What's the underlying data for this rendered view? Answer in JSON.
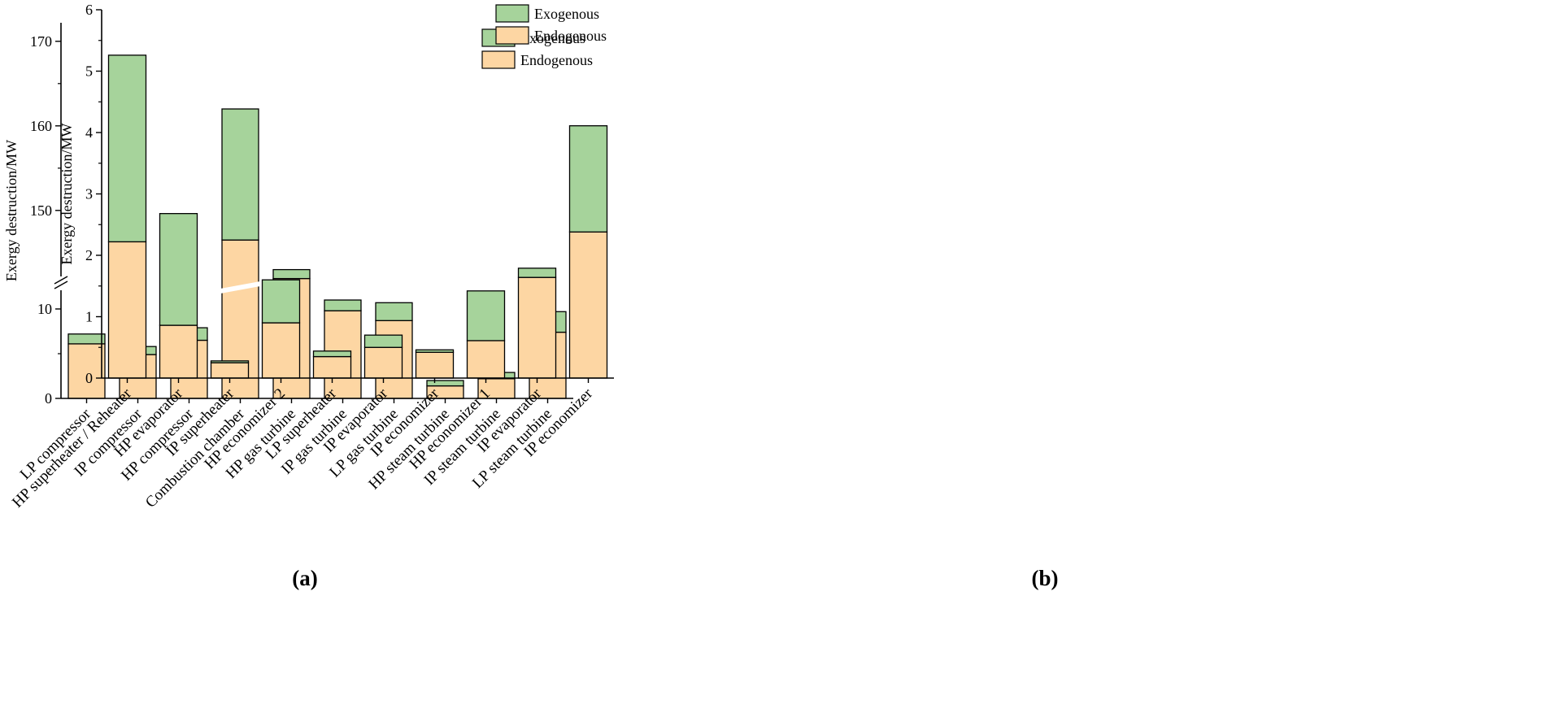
{
  "figure": {
    "sublabels": {
      "a": "(a)",
      "b": "(b)"
    }
  },
  "colors": {
    "exogenous": "#a6d39b",
    "endogenous": "#fdd6a3",
    "axis": "#000000",
    "background": "#ffffff"
  },
  "legend": {
    "items": [
      {
        "label": "Exogenous",
        "key": "exogenous"
      },
      {
        "label": "Endogenous",
        "key": "endogenous"
      }
    ]
  },
  "chart_data": [
    {
      "id": "a",
      "type": "bar",
      "stacked": true,
      "title": "",
      "xlabel": "",
      "ylabel": "Exergy destruction/MW",
      "legend_position": "top-right",
      "axis_break": {
        "lower_max": 14.5,
        "upper_min": 144,
        "upper_max": 172,
        "lower_ticks": [
          0,
          10
        ],
        "upper_ticks": [
          150,
          160,
          170
        ],
        "minor_ticks": [
          5,
          155,
          165
        ]
      },
      "categories": [
        "LP compressor",
        "IP compressor",
        "HP compressor",
        "Combustion chamber",
        "HP gas turbine",
        "IP gas turbine",
        "LP gas turbine",
        "HP steam turbine",
        "IP steam turbine",
        "LP steam turbine"
      ],
      "series": [
        {
          "name": "Endogenous",
          "key": "endogenous",
          "values": [
            6.1,
            4.9,
            6.5,
            146.5,
            13.4,
            9.8,
            8.7,
            1.4,
            2.2,
            7.4
          ]
        },
        {
          "name": "Exogenous",
          "key": "exogenous",
          "values": [
            1.1,
            0.9,
            1.4,
            15.5,
            1.0,
            1.2,
            2.0,
            0.6,
            0.7,
            2.3
          ]
        }
      ]
    },
    {
      "id": "b",
      "type": "bar",
      "stacked": true,
      "title": "",
      "xlabel": "",
      "ylabel": "Exergy destruction/MW",
      "legend_position": "top-right",
      "ylim": [
        0,
        6
      ],
      "yticks": [
        0,
        1,
        2,
        3,
        4,
        5,
        6
      ],
      "yticks_minor": [
        0.5,
        1.5,
        2.5,
        3.5,
        4.5,
        5.5
      ],
      "categories": [
        "HP superheater / Reheater",
        "HP evaporator",
        "IP superheater",
        "HP economizer 2",
        "LP superheater",
        "IP evaporator",
        "IP economizer",
        "HP economizer 1",
        "IP evaporator",
        "IP economizer"
      ],
      "series": [
        {
          "name": "Endogenous",
          "key": "endogenous",
          "values": [
            2.22,
            0.86,
            0.25,
            0.9,
            0.35,
            0.5,
            0.42,
            0.61,
            1.64,
            2.38
          ]
        },
        {
          "name": "Exogenous",
          "key": "exogenous",
          "values": [
            3.04,
            1.82,
            0.03,
            0.7,
            0.09,
            0.2,
            0.04,
            0.81,
            0.15,
            1.73
          ]
        }
      ]
    }
  ]
}
